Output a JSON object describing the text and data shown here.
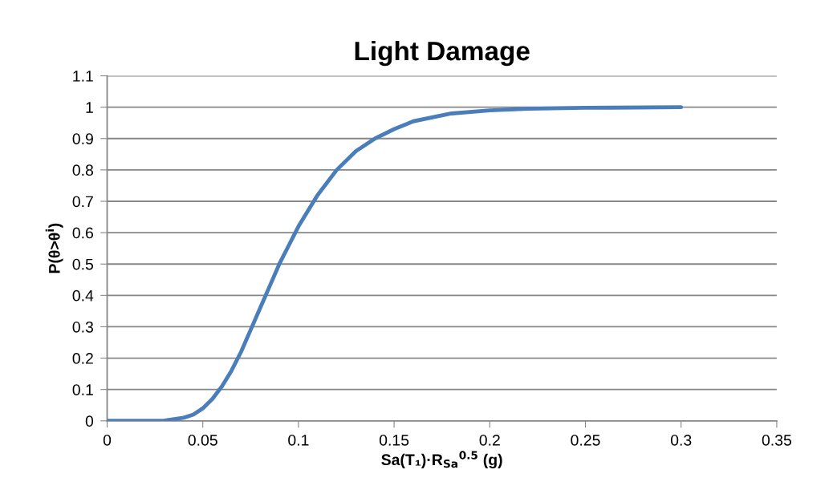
{
  "chart_data": {
    "type": "line",
    "title": "Light Damage",
    "xlabel": "Sa(T₁)·R$_{Sa}$$^{0.5}$ (g)",
    "ylabel": "P(θ>θ$^{i}$)",
    "x": [
      0,
      0.02,
      0.03,
      0.04,
      0.045,
      0.05,
      0.055,
      0.06,
      0.065,
      0.07,
      0.075,
      0.08,
      0.085,
      0.09,
      0.095,
      0.1,
      0.11,
      0.12,
      0.13,
      0.14,
      0.15,
      0.16,
      0.18,
      0.2,
      0.22,
      0.25,
      0.3
    ],
    "series": [
      {
        "color": "#4a7ebb",
        "values": [
          0,
          0,
          0.001,
          0.01,
          0.02,
          0.04,
          0.07,
          0.11,
          0.16,
          0.22,
          0.29,
          0.36,
          0.43,
          0.5,
          0.56,
          0.62,
          0.72,
          0.8,
          0.86,
          0.9,
          0.93,
          0.955,
          0.98,
          0.99,
          0.995,
          0.998,
          1
        ]
      }
    ],
    "xlim": [
      0,
      0.35
    ],
    "xticks": [
      0,
      0.05,
      0.1,
      0.15,
      0.2,
      0.25,
      0.3,
      0.35
    ],
    "ylim": [
      0,
      1.1
    ],
    "yticks": [
      0,
      0.1,
      0.2,
      0.3,
      0.4,
      0.5,
      0.6,
      0.7,
      0.8,
      0.9,
      1,
      1.1
    ],
    "grid": "y",
    "marker": "none",
    "line_style": "solid"
  }
}
